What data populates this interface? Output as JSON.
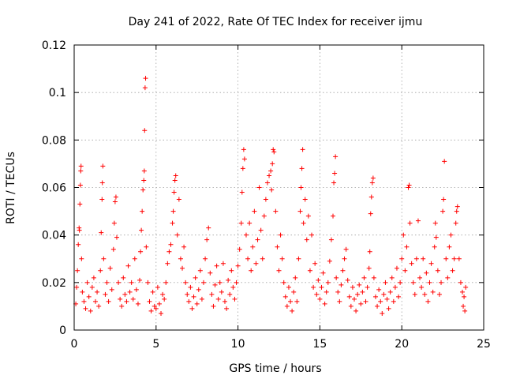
{
  "chart_data": {
    "type": "scatter",
    "title": "Day 241 of 2022, Rate Of TEC Index for receiver ijmu",
    "xlabel": "GPS time / hours",
    "ylabel": "ROTI / TECUs",
    "xlim": [
      0,
      25
    ],
    "ylim": [
      0,
      0.12
    ],
    "x_ticks": [
      0,
      5,
      10,
      15,
      20,
      25
    ],
    "x_tick_labels": [
      "0",
      "5",
      "10",
      "15",
      "20",
      "25"
    ],
    "y_ticks": [
      0,
      0.02,
      0.04,
      0.06,
      0.08,
      0.1,
      0.12
    ],
    "y_tick_labels": [
      "0",
      "0.02",
      "0.04",
      "0.06",
      "0.08",
      "0.1",
      "0.12"
    ],
    "grid": true,
    "marker": "plus",
    "series": [
      {
        "name": "ROTI",
        "color": "#ff0000",
        "points": [
          [
            0.1,
            0.011
          ],
          [
            0.15,
            0.018
          ],
          [
            0.2,
            0.025
          ],
          [
            0.25,
            0.036
          ],
          [
            0.3,
            0.043
          ],
          [
            0.32,
            0.042
          ],
          [
            0.35,
            0.053
          ],
          [
            0.38,
            0.061
          ],
          [
            0.4,
            0.067
          ],
          [
            0.42,
            0.069
          ],
          [
            0.45,
            0.03
          ],
          [
            0.5,
            0.016
          ],
          [
            0.6,
            0.012
          ],
          [
            0.7,
            0.009
          ],
          [
            0.8,
            0.02
          ],
          [
            0.9,
            0.014
          ],
          [
            1.0,
            0.008
          ],
          [
            1.1,
            0.018
          ],
          [
            1.2,
            0.022
          ],
          [
            1.3,
            0.012
          ],
          [
            1.4,
            0.016
          ],
          [
            1.5,
            0.01
          ],
          [
            1.6,
            0.025
          ],
          [
            1.65,
            0.041
          ],
          [
            1.7,
            0.055
          ],
          [
            1.72,
            0.062
          ],
          [
            1.75,
            0.069
          ],
          [
            1.8,
            0.03
          ],
          [
            1.9,
            0.015
          ],
          [
            2.0,
            0.02
          ],
          [
            2.1,
            0.012
          ],
          [
            2.2,
            0.026
          ],
          [
            2.3,
            0.017
          ],
          [
            2.4,
            0.034
          ],
          [
            2.45,
            0.045
          ],
          [
            2.5,
            0.054
          ],
          [
            2.55,
            0.056
          ],
          [
            2.6,
            0.039
          ],
          [
            2.7,
            0.02
          ],
          [
            2.8,
            0.013
          ],
          [
            2.9,
            0.01
          ],
          [
            3.0,
            0.022
          ],
          [
            3.1,
            0.015
          ],
          [
            3.2,
            0.012
          ],
          [
            3.3,
            0.027
          ],
          [
            3.4,
            0.016
          ],
          [
            3.5,
            0.02
          ],
          [
            3.6,
            0.013
          ],
          [
            3.7,
            0.03
          ],
          [
            3.8,
            0.017
          ],
          [
            3.9,
            0.011
          ],
          [
            4.0,
            0.021
          ],
          [
            4.05,
            0.033
          ],
          [
            4.1,
            0.042
          ],
          [
            4.15,
            0.05
          ],
          [
            4.2,
            0.059
          ],
          [
            4.25,
            0.063
          ],
          [
            4.28,
            0.067
          ],
          [
            4.3,
            0.084
          ],
          [
            4.33,
            0.102
          ],
          [
            4.36,
            0.106
          ],
          [
            4.4,
            0.035
          ],
          [
            4.5,
            0.02
          ],
          [
            4.6,
            0.012
          ],
          [
            4.7,
            0.008
          ],
          [
            4.8,
            0.016
          ],
          [
            4.9,
            0.01
          ],
          [
            5.0,
            0.009
          ],
          [
            5.1,
            0.018
          ],
          [
            5.2,
            0.011
          ],
          [
            5.3,
            0.007
          ],
          [
            5.4,
            0.015
          ],
          [
            5.5,
            0.013
          ],
          [
            5.6,
            0.02
          ],
          [
            5.7,
            0.028
          ],
          [
            5.8,
            0.033
          ],
          [
            5.9,
            0.036
          ],
          [
            6.0,
            0.045
          ],
          [
            6.05,
            0.05
          ],
          [
            6.1,
            0.058
          ],
          [
            6.15,
            0.063
          ],
          [
            6.2,
            0.065
          ],
          [
            6.3,
            0.04
          ],
          [
            6.4,
            0.055
          ],
          [
            6.5,
            0.03
          ],
          [
            6.6,
            0.026
          ],
          [
            6.7,
            0.035
          ],
          [
            6.8,
            0.02
          ],
          [
            6.9,
            0.015
          ],
          [
            7.0,
            0.012
          ],
          [
            7.1,
            0.018
          ],
          [
            7.2,
            0.009
          ],
          [
            7.3,
            0.014
          ],
          [
            7.4,
            0.022
          ],
          [
            7.5,
            0.011
          ],
          [
            7.6,
            0.017
          ],
          [
            7.7,
            0.025
          ],
          [
            7.8,
            0.013
          ],
          [
            7.9,
            0.02
          ],
          [
            8.0,
            0.03
          ],
          [
            8.1,
            0.038
          ],
          [
            8.2,
            0.043
          ],
          [
            8.3,
            0.024
          ],
          [
            8.4,
            0.015
          ],
          [
            8.5,
            0.01
          ],
          [
            8.6,
            0.019
          ],
          [
            8.7,
            0.027
          ],
          [
            8.8,
            0.013
          ],
          [
            8.9,
            0.02
          ],
          [
            9.0,
            0.016
          ],
          [
            9.1,
            0.028
          ],
          [
            9.2,
            0.012
          ],
          [
            9.3,
            0.009
          ],
          [
            9.4,
            0.021
          ],
          [
            9.5,
            0.015
          ],
          [
            9.6,
            0.025
          ],
          [
            9.7,
            0.018
          ],
          [
            9.8,
            0.013
          ],
          [
            9.9,
            0.02
          ],
          [
            10.0,
            0.027
          ],
          [
            10.1,
            0.034
          ],
          [
            10.2,
            0.045
          ],
          [
            10.25,
            0.058
          ],
          [
            10.3,
            0.068
          ],
          [
            10.35,
            0.076
          ],
          [
            10.4,
            0.072
          ],
          [
            10.5,
            0.04
          ],
          [
            10.6,
            0.03
          ],
          [
            10.7,
            0.045
          ],
          [
            10.8,
            0.025
          ],
          [
            10.9,
            0.035
          ],
          [
            11.0,
            0.05
          ],
          [
            11.1,
            0.028
          ],
          [
            11.2,
            0.038
          ],
          [
            11.3,
            0.06
          ],
          [
            11.4,
            0.042
          ],
          [
            11.5,
            0.03
          ],
          [
            11.6,
            0.048
          ],
          [
            11.7,
            0.055
          ],
          [
            11.8,
            0.062
          ],
          [
            11.9,
            0.065
          ],
          [
            12.0,
            0.067
          ],
          [
            12.05,
            0.059
          ],
          [
            12.1,
            0.07
          ],
          [
            12.15,
            0.076
          ],
          [
            12.2,
            0.075
          ],
          [
            12.3,
            0.05
          ],
          [
            12.4,
            0.035
          ],
          [
            12.5,
            0.025
          ],
          [
            12.6,
            0.04
          ],
          [
            12.7,
            0.03
          ],
          [
            12.8,
            0.02
          ],
          [
            12.9,
            0.014
          ],
          [
            13.0,
            0.01
          ],
          [
            13.1,
            0.018
          ],
          [
            13.2,
            0.012
          ],
          [
            13.3,
            0.008
          ],
          [
            13.4,
            0.016
          ],
          [
            13.5,
            0.022
          ],
          [
            13.6,
            0.012
          ],
          [
            13.7,
            0.03
          ],
          [
            13.8,
            0.05
          ],
          [
            13.85,
            0.06
          ],
          [
            13.9,
            0.068
          ],
          [
            13.95,
            0.076
          ],
          [
            14.0,
            0.045
          ],
          [
            14.1,
            0.055
          ],
          [
            14.2,
            0.038
          ],
          [
            14.3,
            0.048
          ],
          [
            14.4,
            0.025
          ],
          [
            14.5,
            0.04
          ],
          [
            14.6,
            0.018
          ],
          [
            14.7,
            0.028
          ],
          [
            14.8,
            0.015
          ],
          [
            14.9,
            0.021
          ],
          [
            15.0,
            0.013
          ],
          [
            15.1,
            0.018
          ],
          [
            15.2,
            0.024
          ],
          [
            15.3,
            0.011
          ],
          [
            15.4,
            0.016
          ],
          [
            15.5,
            0.02
          ],
          [
            15.6,
            0.029
          ],
          [
            15.7,
            0.038
          ],
          [
            15.8,
            0.048
          ],
          [
            15.85,
            0.062
          ],
          [
            15.9,
            0.066
          ],
          [
            15.95,
            0.073
          ],
          [
            16.0,
            0.022
          ],
          [
            16.1,
            0.016
          ],
          [
            16.2,
            0.012
          ],
          [
            16.3,
            0.019
          ],
          [
            16.4,
            0.025
          ],
          [
            16.5,
            0.03
          ],
          [
            16.6,
            0.034
          ],
          [
            16.7,
            0.021
          ],
          [
            16.8,
            0.014
          ],
          [
            16.9,
            0.01
          ],
          [
            17.0,
            0.018
          ],
          [
            17.1,
            0.013
          ],
          [
            17.2,
            0.008
          ],
          [
            17.3,
            0.015
          ],
          [
            17.4,
            0.019
          ],
          [
            17.5,
            0.011
          ],
          [
            17.6,
            0.016
          ],
          [
            17.7,
            0.022
          ],
          [
            17.8,
            0.012
          ],
          [
            17.9,
            0.018
          ],
          [
            18.0,
            0.026
          ],
          [
            18.05,
            0.033
          ],
          [
            18.1,
            0.049
          ],
          [
            18.15,
            0.056
          ],
          [
            18.2,
            0.062
          ],
          [
            18.25,
            0.064
          ],
          [
            18.3,
            0.022
          ],
          [
            18.4,
            0.014
          ],
          [
            18.5,
            0.01
          ],
          [
            18.6,
            0.017
          ],
          [
            18.7,
            0.012
          ],
          [
            18.8,
            0.007
          ],
          [
            18.9,
            0.015
          ],
          [
            19.0,
            0.02
          ],
          [
            19.1,
            0.013
          ],
          [
            19.2,
            0.009
          ],
          [
            19.3,
            0.016
          ],
          [
            19.4,
            0.022
          ],
          [
            19.5,
            0.012
          ],
          [
            19.6,
            0.018
          ],
          [
            19.7,
            0.026
          ],
          [
            19.8,
            0.014
          ],
          [
            19.9,
            0.02
          ],
          [
            20.0,
            0.03
          ],
          [
            20.1,
            0.04
          ],
          [
            20.2,
            0.025
          ],
          [
            20.3,
            0.035
          ],
          [
            20.4,
            0.06
          ],
          [
            20.45,
            0.061
          ],
          [
            20.5,
            0.045
          ],
          [
            20.6,
            0.028
          ],
          [
            20.7,
            0.02
          ],
          [
            20.8,
            0.015
          ],
          [
            20.9,
            0.03
          ],
          [
            21.0,
            0.046
          ],
          [
            21.1,
            0.022
          ],
          [
            21.2,
            0.018
          ],
          [
            21.3,
            0.03
          ],
          [
            21.4,
            0.015
          ],
          [
            21.5,
            0.024
          ],
          [
            21.6,
            0.012
          ],
          [
            21.7,
            0.02
          ],
          [
            21.8,
            0.028
          ],
          [
            21.9,
            0.016
          ],
          [
            22.0,
            0.035
          ],
          [
            22.05,
            0.045
          ],
          [
            22.1,
            0.039
          ],
          [
            22.2,
            0.025
          ],
          [
            22.3,
            0.015
          ],
          [
            22.4,
            0.02
          ],
          [
            22.5,
            0.05
          ],
          [
            22.55,
            0.055
          ],
          [
            22.6,
            0.071
          ],
          [
            22.7,
            0.03
          ],
          [
            22.8,
            0.022
          ],
          [
            22.9,
            0.035
          ],
          [
            23.0,
            0.04
          ],
          [
            23.1,
            0.025
          ],
          [
            23.2,
            0.03
          ],
          [
            23.3,
            0.045
          ],
          [
            23.35,
            0.05
          ],
          [
            23.4,
            0.052
          ],
          [
            23.5,
            0.03
          ],
          [
            23.6,
            0.02
          ],
          [
            23.7,
            0.016
          ],
          [
            23.75,
            0.01
          ],
          [
            23.8,
            0.014
          ],
          [
            23.85,
            0.008
          ],
          [
            23.9,
            0.018
          ]
        ]
      }
    ]
  }
}
